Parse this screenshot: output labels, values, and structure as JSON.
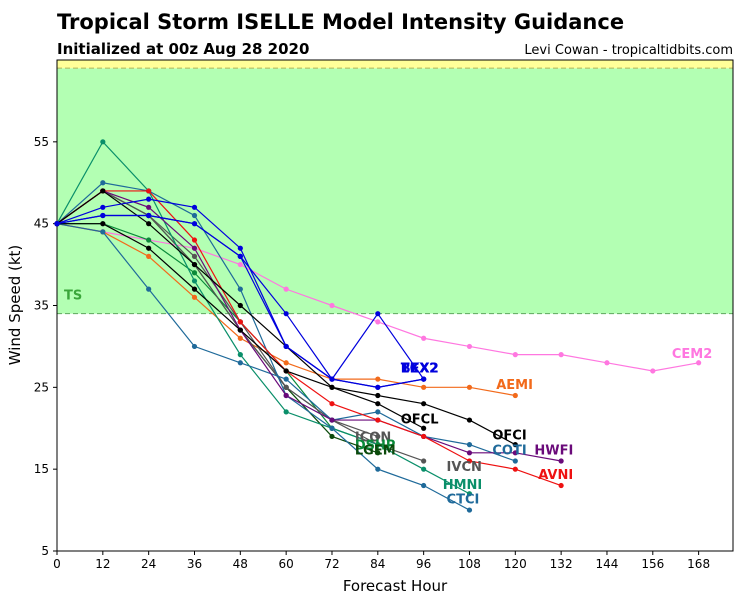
{
  "chart_data": {
    "type": "line",
    "title": "Tropical Storm ISELLE Model Intensity Guidance",
    "subtitle": "Initialized at 00z Aug 28 2020",
    "credit": "Levi Cowan - tropicaltidbits.com",
    "xlabel": "Forecast Hour",
    "ylabel": "Wind Speed (kt)",
    "xlim": [
      0,
      177
    ],
    "ylim": [
      5,
      65
    ],
    "xticks": [
      0,
      12,
      24,
      36,
      48,
      60,
      72,
      84,
      96,
      108,
      120,
      132,
      144,
      156,
      168
    ],
    "yticks": [
      5,
      15,
      25,
      35,
      45,
      55
    ],
    "bands": [
      {
        "label": "TS",
        "from": 34,
        "to": 64,
        "color": "#b3ffb3",
        "edge_color": "#5fa85f"
      },
      {
        "label": "",
        "from": 64,
        "to": 65,
        "color": "#ffff99",
        "edge_color": "#b3b35a"
      }
    ],
    "series": [
      {
        "name": "CEM2",
        "color": "#ff77e0",
        "x": [
          0,
          12,
          24,
          36,
          48,
          60,
          72,
          84,
          96,
          108,
          120,
          132,
          144,
          156,
          168
        ],
        "y": [
          45,
          44,
          43,
          42,
          40,
          37,
          35,
          33,
          31,
          30,
          29,
          29,
          28,
          27,
          28
        ]
      },
      {
        "name": "AEMI",
        "color": "#f26a1b",
        "x": [
          0,
          12,
          24,
          36,
          48,
          60,
          72,
          84,
          96,
          108,
          120
        ],
        "y": [
          45,
          44,
          41,
          36,
          31,
          28,
          26,
          26,
          25,
          25,
          24
        ]
      },
      {
        "name": "DSHP",
        "color": "#0a8a3a",
        "x": [
          0,
          12,
          24,
          36,
          48,
          60,
          72,
          84
        ],
        "y": [
          45,
          45,
          43,
          39,
          33,
          27,
          20,
          18
        ]
      },
      {
        "name": "LGEM",
        "color": "#0b4a0b",
        "x": [
          0,
          12,
          24,
          36,
          48,
          60,
          72,
          84
        ],
        "y": [
          45,
          49,
          46,
          40,
          32,
          25,
          19,
          17
        ]
      },
      {
        "name": "ICON",
        "color": "#555555",
        "x": [
          0,
          12,
          24,
          36,
          48,
          60,
          72,
          84
        ],
        "y": [
          45,
          49,
          46,
          41,
          33,
          25,
          21,
          19
        ]
      },
      {
        "name": "IVCN",
        "color": "#555555",
        "x": [
          0,
          12,
          24,
          36,
          48,
          60,
          72,
          84,
          96
        ],
        "y": [
          45,
          49,
          46,
          40,
          32,
          25,
          21,
          18,
          16
        ]
      },
      {
        "name": "HMNI",
        "color": "#0a8f6a",
        "x": [
          0,
          12,
          24,
          36,
          48,
          60,
          72,
          84,
          96,
          108
        ],
        "y": [
          45,
          55,
          49,
          38,
          29,
          22,
          20,
          18,
          15,
          12
        ]
      },
      {
        "name": "CTCI",
        "color": "#1f6a9a",
        "x": [
          0,
          12,
          24,
          36,
          48,
          60,
          72,
          84,
          96,
          108
        ],
        "y": [
          45,
          50,
          49,
          46,
          37,
          24,
          20,
          15,
          13,
          10
        ]
      },
      {
        "name": "COTI",
        "color": "#1f6a9a",
        "x": [
          0,
          12,
          24,
          36,
          48,
          60,
          72,
          84,
          96,
          108,
          120
        ],
        "y": [
          45,
          44,
          37,
          30,
          28,
          26,
          21,
          22,
          19,
          18,
          16
        ]
      },
      {
        "name": "HWFI",
        "color": "#6a0a7a",
        "x": [
          0,
          12,
          24,
          36,
          48,
          60,
          72,
          84,
          96,
          108,
          120,
          132
        ],
        "y": [
          45,
          49,
          47,
          42,
          32,
          24,
          21,
          21,
          19,
          17,
          17,
          16
        ]
      },
      {
        "name": "AVNI",
        "color": "#ee1111",
        "x": [
          0,
          12,
          24,
          36,
          48,
          60,
          72,
          84,
          96,
          108,
          120,
          132
        ],
        "y": [
          45,
          49,
          49,
          43,
          33,
          27,
          23,
          21,
          19,
          16,
          15,
          13
        ]
      },
      {
        "name": "OFCL",
        "color": "#000000",
        "x": [
          0,
          12,
          24,
          36,
          48,
          60,
          72,
          84,
          96
        ],
        "y": [
          45,
          45,
          42,
          37,
          32,
          27,
          25,
          23,
          20
        ]
      },
      {
        "name": "OFCI",
        "color": "#000000",
        "x": [
          0,
          12,
          24,
          36,
          48,
          60,
          72,
          84,
          96,
          108,
          120
        ],
        "y": [
          45,
          49,
          45,
          40,
          35,
          30,
          25,
          24,
          23,
          21,
          18
        ]
      },
      {
        "name": "BEX2",
        "color": "#0000dd",
        "x": [
          0,
          12,
          24,
          36,
          48,
          60,
          72,
          84,
          96
        ],
        "y": [
          45,
          46,
          46,
          45,
          41,
          34,
          26,
          34,
          26
        ]
      },
      {
        "name": "TCX2",
        "color": "#0000dd",
        "x": [
          0,
          12,
          24,
          36,
          48,
          60,
          72,
          84,
          96
        ],
        "y": [
          45,
          47,
          48,
          47,
          42,
          30,
          26,
          25,
          26
        ]
      },
      {
        "name": "EKX2",
        "color": "#0000dd",
        "x": [
          0,
          12,
          24,
          36,
          48,
          60,
          72,
          84,
          96
        ],
        "y": [
          45,
          46,
          46,
          45,
          41,
          30,
          26,
          25,
          26
        ]
      }
    ],
    "labels": [
      {
        "text": "CEM2",
        "color": "#ff77e0",
        "x": 161,
        "y": 28.6
      },
      {
        "text": "AEMI",
        "color": "#f26a1b",
        "x": 115,
        "y": 24.8
      },
      {
        "text": "EKX2",
        "color": "#0000dd",
        "x": 90,
        "y": 26.8
      },
      {
        "text": "TCX2",
        "color": "#0000dd",
        "x": 90,
        "y": 26.8
      },
      {
        "text": "BEX2",
        "color": "#0000dd",
        "x": 90,
        "y": 26.8
      },
      {
        "text": "OFCL",
        "color": "#000000",
        "x": 90,
        "y": 20.6
      },
      {
        "text": "OFCI",
        "color": "#000000",
        "x": 114,
        "y": 18.6
      },
      {
        "text": "ICON",
        "color": "#555555",
        "x": 78,
        "y": 18.4
      },
      {
        "text": "DSHP",
        "color": "#0a8a3a",
        "x": 78,
        "y": 17.4
      },
      {
        "text": "LGEM",
        "color": "#0b4a0b",
        "x": 78,
        "y": 16.8
      },
      {
        "text": "COTI",
        "color": "#1f6a9a",
        "x": 114,
        "y": 16.8
      },
      {
        "text": "HWFI",
        "color": "#6a0a7a",
        "x": 125,
        "y": 16.8
      },
      {
        "text": "IVCN",
        "color": "#555555",
        "x": 102,
        "y": 14.8
      },
      {
        "text": "AVNI",
        "color": "#ee1111",
        "x": 126,
        "y": 13.8
      },
      {
        "text": "HMNI",
        "color": "#0a8f6a",
        "x": 101,
        "y": 12.6
      },
      {
        "text": "CTCI",
        "color": "#1f6a9a",
        "x": 102,
        "y": 10.8
      }
    ]
  }
}
